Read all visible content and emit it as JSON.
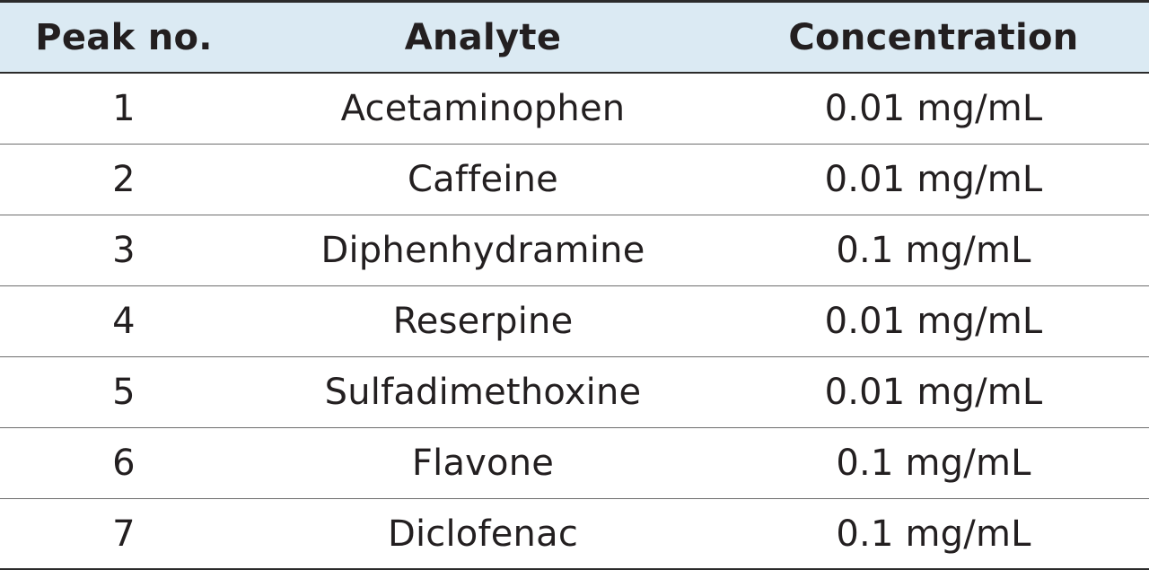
{
  "table": {
    "headers": [
      "Peak no.",
      "Analyte",
      "Concentration"
    ],
    "rows": [
      [
        "1",
        "Acetaminophen",
        "0.01 mg/mL"
      ],
      [
        "2",
        "Caffeine",
        "0.01 mg/mL"
      ],
      [
        "3",
        "Diphenhydramine",
        "0.1 mg/mL"
      ],
      [
        "4",
        "Reserpine",
        "0.01 mg/mL"
      ],
      [
        "5",
        "Sulfadimethoxine",
        "0.01 mg/mL"
      ],
      [
        "6",
        "Flavone",
        "0.1 mg/mL"
      ],
      [
        "7",
        "Diclofenac",
        "0.1 mg/mL"
      ]
    ]
  },
  "colors": {
    "header_background": "#dbeaf3",
    "text": "#231f20",
    "rule": "#2b2b2b"
  }
}
